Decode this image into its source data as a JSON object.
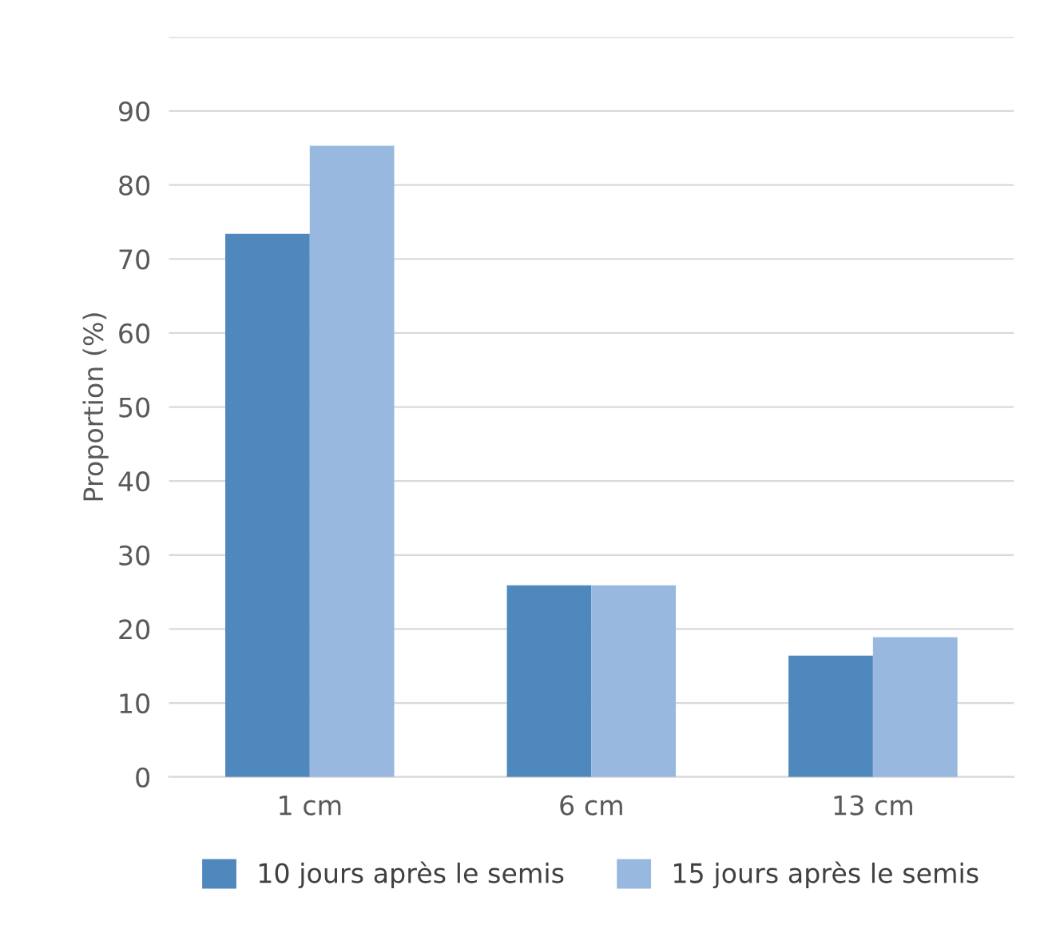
{
  "chart_data": {
    "type": "bar",
    "ylabel": "Proportion (%)",
    "categories": [
      "1 cm",
      "6 cm",
      "13 cm"
    ],
    "series": [
      {
        "name": "10 jours après le semis",
        "color": "#4f88bd",
        "values": [
          73.4,
          25.9,
          16.4
        ]
      },
      {
        "name": "15 jours après le semis",
        "color": "#98b8e0",
        "values": [
          85.3,
          25.9,
          18.9
        ]
      }
    ],
    "ylim": [
      0,
      100
    ],
    "yticks": [
      0,
      10,
      20,
      30,
      40,
      50,
      60,
      70,
      80,
      90,
      {
        "value": 100,
        "label": null
      }
    ],
    "grid": "y",
    "legend": "bottom"
  }
}
